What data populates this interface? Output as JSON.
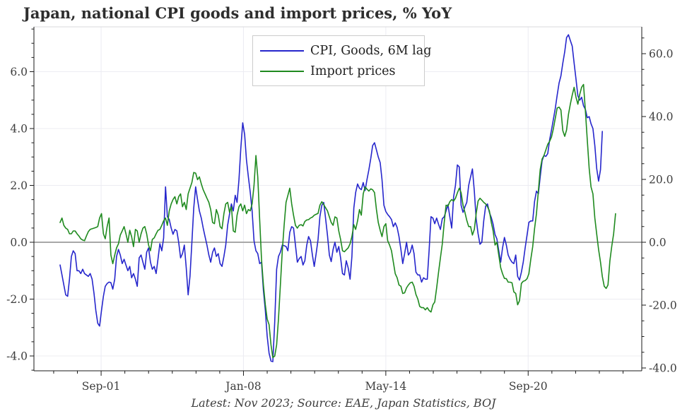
{
  "title": "Japan, national CPI goods and import prices, % YoY",
  "caption": "Latest: Nov 2023; Source: EAE, Japan Statistics, BOJ",
  "legend": {
    "items": [
      {
        "label": "CPI, Goods, 6M lag",
        "color": "#2626cc"
      },
      {
        "label": "Import prices",
        "color": "#1f8a1f"
      }
    ]
  },
  "chart_data": {
    "type": "line",
    "title": "Japan, national CPI goods and import prices, % YoY",
    "frequency": "monthly",
    "latest": "Nov 2023",
    "x_axis": {
      "major_ticks": [
        {
          "idx": 21.8,
          "label": "Sep-01"
        },
        {
          "idx": 97.4,
          "label": "Jan-08"
        },
        {
          "idx": 173.0,
          "label": "May-14"
        },
        {
          "idx": 248.6,
          "label": "Sep-20"
        }
      ],
      "minor_step_idx": 12.6,
      "grid_on_major": true
    },
    "left_axis": {
      "series": "CPI, Goods, 6M lag",
      "range": [
        -4.55,
        7.55
      ],
      "ticks": [
        {
          "v": 6,
          "label": "6.0"
        },
        {
          "v": 4,
          "label": "4.0"
        },
        {
          "v": 2,
          "label": "2.0"
        },
        {
          "v": 0,
          "label": "0.0"
        },
        {
          "v": -2,
          "label": "-2.0"
        },
        {
          "v": -4,
          "label": "-4.0"
        }
      ],
      "minor_step": 0.5,
      "grid_on_major": true
    },
    "right_axis": {
      "series": "Import prices",
      "range": [
        -41.2,
        68.5
      ],
      "ticks": [
        {
          "v": 60,
          "label": "60.0"
        },
        {
          "v": 40,
          "label": "40.0"
        },
        {
          "v": 20,
          "label": "20.0"
        },
        {
          "v": 0,
          "label": "0.0"
        },
        {
          "v": -20,
          "label": "-20.0"
        },
        {
          "v": -40,
          "label": "-40.0"
        }
      ],
      "minor_step": 5,
      "grid_on_major": false
    },
    "zero_line": true,
    "legend_position": "upper center",
    "series": [
      {
        "name": "CPI, Goods, 6M lag",
        "axis": "left",
        "color": "#2626cc",
        "values": [
          -0.8,
          -1.15,
          -1.5,
          -1.85,
          -1.9,
          -1.3,
          -0.5,
          -0.3,
          -0.4,
          -1.0,
          -1.0,
          -1.1,
          -0.95,
          -1.1,
          -1.15,
          -1.2,
          -1.1,
          -1.3,
          -1.8,
          -2.4,
          -2.85,
          -2.95,
          -2.4,
          -1.9,
          -1.55,
          -1.45,
          -1.4,
          -1.42,
          -1.65,
          -1.3,
          -0.5,
          -0.25,
          -0.45,
          -0.75,
          -0.6,
          -0.8,
          -1.0,
          -0.85,
          -1.25,
          -1.1,
          -1.3,
          -1.55,
          -0.55,
          -0.45,
          -0.7,
          -0.95,
          -0.35,
          -0.2,
          -0.7,
          -0.95,
          -0.85,
          -1.1,
          -0.6,
          -0.05,
          -0.3,
          0.15,
          1.95,
          0.9,
          0.8,
          0.5,
          0.28,
          0.45,
          0.4,
          0.0,
          -0.55,
          -0.4,
          -0.1,
          -0.9,
          -1.85,
          -1.2,
          0.0,
          1.2,
          1.95,
          1.5,
          1.1,
          0.85,
          0.5,
          0.2,
          -0.1,
          -0.45,
          -0.7,
          -0.35,
          -0.2,
          -0.5,
          -0.4,
          -0.75,
          -0.85,
          -0.5,
          -0.1,
          0.6,
          1.0,
          1.35,
          1.1,
          1.65,
          1.4,
          2.2,
          3.3,
          4.2,
          3.8,
          2.9,
          2.3,
          1.75,
          1.1,
          0.05,
          -0.3,
          -0.4,
          -0.75,
          -0.7,
          -1.7,
          -2.4,
          -3.3,
          -3.9,
          -4.18,
          -4.2,
          -2.8,
          -0.95,
          -0.5,
          -0.35,
          -0.1,
          -0.12,
          -0.15,
          -0.3,
          0.35,
          0.55,
          0.5,
          -0.1,
          -0.7,
          -0.58,
          -0.5,
          -0.8,
          -0.65,
          -0.1,
          0.2,
          0.05,
          -0.45,
          -0.85,
          -0.4,
          0.1,
          0.9,
          1.3,
          1.4,
          0.85,
          0.25,
          -0.45,
          -0.68,
          -0.25,
          0.0,
          -0.35,
          -0.15,
          -0.55,
          -1.1,
          -1.15,
          -0.65,
          -0.9,
          -1.3,
          -0.5,
          1.2,
          1.75,
          2.05,
          1.9,
          1.85,
          2.1,
          1.82,
          2.2,
          2.55,
          2.95,
          3.4,
          3.5,
          3.25,
          3.0,
          2.8,
          2.2,
          1.3,
          1.08,
          0.98,
          0.9,
          0.8,
          0.55,
          0.68,
          0.52,
          0.2,
          -0.25,
          -0.75,
          -0.4,
          0.0,
          -0.45,
          -0.35,
          -0.1,
          -0.4,
          -1.05,
          -1.15,
          -1.15,
          -1.4,
          -1.25,
          -1.3,
          -1.3,
          -0.3,
          0.9,
          0.85,
          0.65,
          0.85,
          0.63,
          0.45,
          0.83,
          0.9,
          1.1,
          1.32,
          0.9,
          0.5,
          1.6,
          2.0,
          2.72,
          2.65,
          1.3,
          1.05,
          1.25,
          1.4,
          2.0,
          2.3,
          2.58,
          1.8,
          0.82,
          0.3,
          -0.07,
          0.0,
          0.75,
          1.27,
          1.35,
          1.05,
          0.87,
          0.63,
          0.27,
          0.12,
          -0.3,
          -0.7,
          -0.2,
          0.17,
          -0.1,
          -0.45,
          -0.6,
          -0.7,
          -0.75,
          -0.45,
          -1.2,
          -1.33,
          -1.05,
          -0.7,
          -0.2,
          0.25,
          0.7,
          0.75,
          0.75,
          1.43,
          1.8,
          1.7,
          2.3,
          2.87,
          3.05,
          3.02,
          3.12,
          3.6,
          3.95,
          4.33,
          4.7,
          5.17,
          5.6,
          5.85,
          6.3,
          6.7,
          7.2,
          7.3,
          7.1,
          6.9,
          6.3,
          5.75,
          5.15,
          5.0,
          5.1,
          4.8,
          4.67,
          4.38,
          4.42,
          4.17,
          4.0,
          3.4,
          2.6,
          2.15,
          2.55,
          3.9
        ]
      },
      {
        "name": "Import prices",
        "axis": "right",
        "color": "#1f8a1f",
        "values": [
          6.3,
          7.7,
          5.4,
          4.5,
          4.1,
          2.7,
          2.7,
          3.6,
          3.6,
          2.7,
          2.0,
          1.1,
          0.7,
          0.5,
          2.0,
          3.4,
          4.1,
          4.3,
          4.5,
          4.7,
          5.0,
          7.7,
          9.1,
          2.7,
          1.1,
          5.0,
          7.7,
          -4.1,
          -6.8,
          -4.1,
          -1.8,
          -0.5,
          2.3,
          3.6,
          5.0,
          2.7,
          0.0,
          3.8,
          1.8,
          -1.4,
          4.1,
          3.6,
          0.0,
          2.7,
          4.5,
          5.0,
          2.7,
          -0.9,
          -2.7,
          0.9,
          1.4,
          2.7,
          3.8,
          4.1,
          5.4,
          6.8,
          7.7,
          5.4,
          10.0,
          12.2,
          13.6,
          14.5,
          12.2,
          14.5,
          15.4,
          11.3,
          12.7,
          10.4,
          15.4,
          17.2,
          19.0,
          22.2,
          22.0,
          19.9,
          20.8,
          18.6,
          16.7,
          15.4,
          14.0,
          12.7,
          10.4,
          6.3,
          5.9,
          10.4,
          8.6,
          5.0,
          4.3,
          9.1,
          12.2,
          12.7,
          9.5,
          11.3,
          3.6,
          3.2,
          8.6,
          11.3,
          12.2,
          10.0,
          11.8,
          9.1,
          10.4,
          10.0,
          12.2,
          18.1,
          27.6,
          20.8,
          7.2,
          -5.4,
          -13.6,
          -19.9,
          -24.4,
          -26.2,
          -32.6,
          -36.7,
          -36.2,
          -32.6,
          -24.4,
          -13.6,
          -2.7,
          5.4,
          12.7,
          14.9,
          17.2,
          12.2,
          8.6,
          5.4,
          4.5,
          5.4,
          5.6,
          5.2,
          6.6,
          7.1,
          7.2,
          7.7,
          8.0,
          8.6,
          8.9,
          9.2,
          11.8,
          12.9,
          12.0,
          11.0,
          10.0,
          8.1,
          6.3,
          5.4,
          8.1,
          7.7,
          3.6,
          0.9,
          -2.7,
          -3.0,
          -2.4,
          -1.8,
          -0.5,
          1.8,
          5.6,
          4.1,
          6.8,
          10.4,
          8.6,
          15.4,
          17.6,
          16.9,
          16.3,
          17.0,
          16.7,
          15.8,
          10.4,
          6.3,
          3.8,
          1.8,
          5.0,
          5.9,
          0.5,
          -0.9,
          -2.7,
          -6.3,
          -10.0,
          -11.3,
          -13.6,
          -14.0,
          -16.3,
          -16.1,
          -14.5,
          -13.6,
          -12.9,
          -12.7,
          -14.0,
          -16.6,
          -18.1,
          -20.4,
          -20.8,
          -20.8,
          -21.5,
          -20.8,
          -21.7,
          -22.2,
          -19.9,
          -19.0,
          -14.5,
          -9.5,
          -5.0,
          -0.5,
          6.3,
          11.8,
          11.5,
          12.9,
          13.6,
          13.1,
          14.0,
          15.7,
          17.2,
          15.8,
          11.8,
          9.5,
          7.0,
          5.0,
          5.0,
          2.3,
          4.1,
          9.1,
          13.1,
          14.0,
          13.4,
          12.7,
          12.2,
          11.3,
          10.0,
          6.3,
          3.6,
          -0.9,
          0.0,
          -4.1,
          -8.1,
          -10.0,
          -11.5,
          -11.6,
          -12.7,
          -12.7,
          -12.9,
          -15.8,
          -16.3,
          -19.9,
          -18.6,
          -13.1,
          -12.4,
          -12.2,
          -11.6,
          -10.0,
          -5.4,
          -1.4,
          4.3,
          9.1,
          16.3,
          23.1,
          26.5,
          27.6,
          29.4,
          31.2,
          32.1,
          33.5,
          36.2,
          39.4,
          42.7,
          43.0,
          42.1,
          35.5,
          33.7,
          35.7,
          40.7,
          43.9,
          46.8,
          49.3,
          46.2,
          43.9,
          47.1,
          49.3,
          50.2,
          41.6,
          32.6,
          23.5,
          17.6,
          15.4,
          7.7,
          2.7,
          -2.3,
          -6.3,
          -10.9,
          -14.0,
          -14.7,
          -13.6,
          -5.9,
          -1.2,
          2.7,
          9.1
        ]
      }
    ]
  }
}
